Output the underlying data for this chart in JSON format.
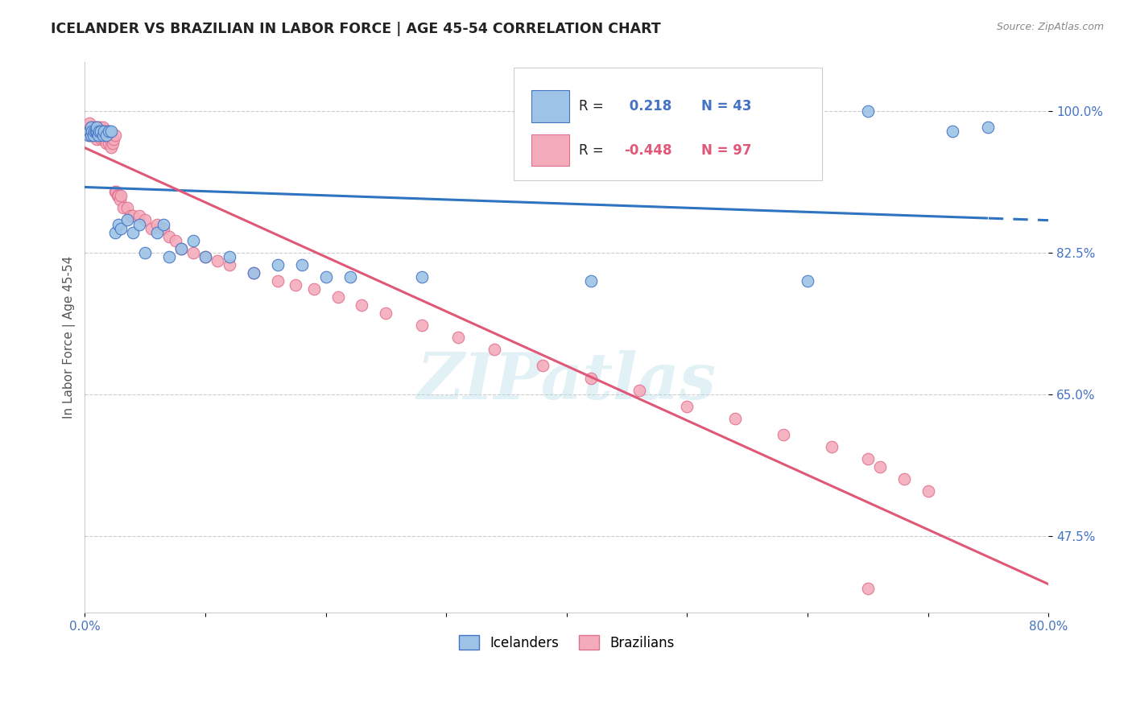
{
  "title": "ICELANDER VS BRAZILIAN IN LABOR FORCE | AGE 45-54 CORRELATION CHART",
  "source": "Source: ZipAtlas.com",
  "ylabel": "In Labor Force | Age 45-54",
  "legend_icelander": "Icelanders",
  "legend_brazilian": "Brazilians",
  "R_icelander": 0.218,
  "N_icelander": 43,
  "R_brazilian": -0.448,
  "N_brazilian": 97,
  "watermark": "ZIPatlas",
  "xlim": [
    0.0,
    0.8
  ],
  "ylim": [
    0.38,
    1.06
  ],
  "ytick_values": [
    0.475,
    0.65,
    0.825,
    1.0
  ],
  "icelander_color": "#9DC3E6",
  "icelander_edge": "#4472C4",
  "brazilian_color": "#F4ACBB",
  "brazilian_edge": "#E07090",
  "line_ice_color": "#2E74C0",
  "line_bra_color": "#E05878",
  "icelander_x": [
    0.003,
    0.004,
    0.005,
    0.005,
    0.006,
    0.007,
    0.008,
    0.009,
    0.01,
    0.01,
    0.011,
    0.012,
    0.013,
    0.015,
    0.016,
    0.018,
    0.02,
    0.022,
    0.025,
    0.028,
    0.03,
    0.035,
    0.04,
    0.045,
    0.05,
    0.06,
    0.065,
    0.07,
    0.08,
    0.09,
    0.1,
    0.12,
    0.14,
    0.16,
    0.18,
    0.2,
    0.22,
    0.28,
    0.42,
    0.6,
    0.65,
    0.72,
    0.75
  ],
  "icelander_y": [
    0.97,
    0.975,
    0.98,
    0.97,
    0.975,
    0.97,
    0.975,
    0.975,
    0.975,
    0.98,
    0.97,
    0.975,
    0.975,
    0.97,
    0.975,
    0.97,
    0.975,
    0.975,
    0.85,
    0.86,
    0.855,
    0.865,
    0.85,
    0.86,
    0.825,
    0.85,
    0.86,
    0.82,
    0.83,
    0.84,
    0.82,
    0.82,
    0.8,
    0.81,
    0.81,
    0.795,
    0.795,
    0.795,
    0.79,
    0.79,
    1.0,
    0.975,
    0.98
  ],
  "brazilian_x": [
    0.003,
    0.003,
    0.004,
    0.004,
    0.005,
    0.005,
    0.005,
    0.006,
    0.006,
    0.007,
    0.007,
    0.007,
    0.008,
    0.008,
    0.008,
    0.009,
    0.009,
    0.009,
    0.01,
    0.01,
    0.01,
    0.01,
    0.011,
    0.011,
    0.011,
    0.012,
    0.012,
    0.012,
    0.013,
    0.013,
    0.013,
    0.014,
    0.014,
    0.014,
    0.015,
    0.015,
    0.015,
    0.016,
    0.016,
    0.016,
    0.017,
    0.017,
    0.018,
    0.018,
    0.019,
    0.02,
    0.02,
    0.021,
    0.022,
    0.022,
    0.023,
    0.024,
    0.025,
    0.025,
    0.026,
    0.027,
    0.028,
    0.029,
    0.03,
    0.032,
    0.035,
    0.038,
    0.04,
    0.045,
    0.05,
    0.055,
    0.06,
    0.065,
    0.07,
    0.075,
    0.08,
    0.09,
    0.1,
    0.11,
    0.12,
    0.14,
    0.16,
    0.175,
    0.19,
    0.21,
    0.23,
    0.25,
    0.28,
    0.31,
    0.34,
    0.38,
    0.42,
    0.46,
    0.5,
    0.54,
    0.58,
    0.62,
    0.65,
    0.66,
    0.68,
    0.7,
    0.65
  ],
  "brazilian_y": [
    0.98,
    0.97,
    0.975,
    0.985,
    0.975,
    0.98,
    0.97,
    0.975,
    0.97,
    0.98,
    0.975,
    0.97,
    0.98,
    0.975,
    0.97,
    0.98,
    0.975,
    0.97,
    0.98,
    0.975,
    0.97,
    0.965,
    0.98,
    0.975,
    0.97,
    0.98,
    0.975,
    0.97,
    0.98,
    0.975,
    0.97,
    0.975,
    0.97,
    0.965,
    0.98,
    0.975,
    0.97,
    0.975,
    0.97,
    0.965,
    0.97,
    0.965,
    0.975,
    0.96,
    0.97,
    0.975,
    0.96,
    0.965,
    0.97,
    0.955,
    0.96,
    0.965,
    0.97,
    0.9,
    0.9,
    0.895,
    0.895,
    0.89,
    0.895,
    0.88,
    0.88,
    0.87,
    0.87,
    0.87,
    0.865,
    0.855,
    0.86,
    0.855,
    0.845,
    0.84,
    0.83,
    0.825,
    0.82,
    0.815,
    0.81,
    0.8,
    0.79,
    0.785,
    0.78,
    0.77,
    0.76,
    0.75,
    0.735,
    0.72,
    0.705,
    0.685,
    0.67,
    0.655,
    0.635,
    0.62,
    0.6,
    0.585,
    0.57,
    0.56,
    0.545,
    0.53,
    0.41
  ]
}
